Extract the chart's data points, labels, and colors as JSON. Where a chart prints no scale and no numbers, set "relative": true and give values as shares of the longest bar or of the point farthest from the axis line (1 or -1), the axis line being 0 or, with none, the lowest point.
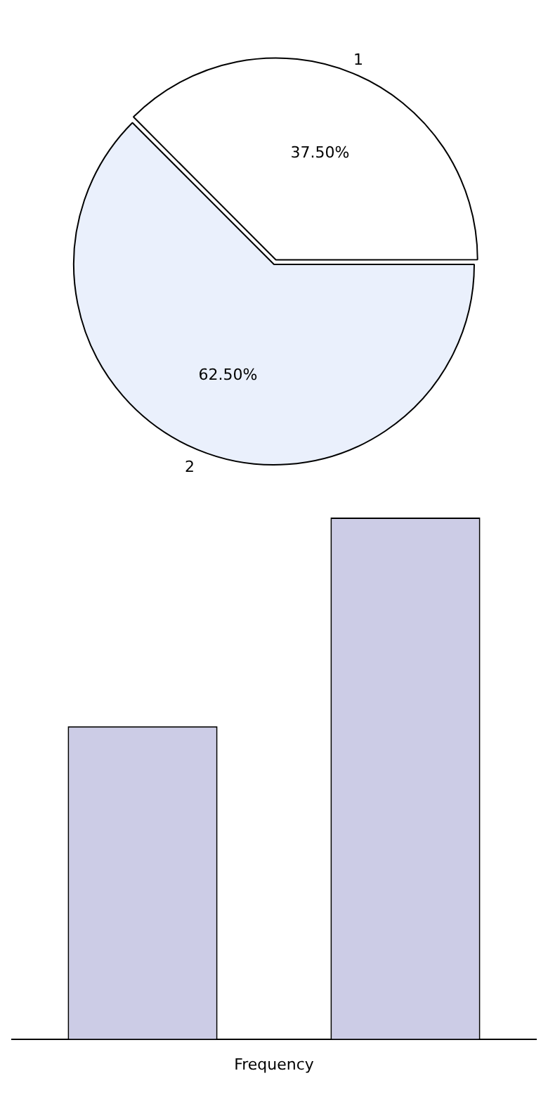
{
  "chart_data": [
    {
      "type": "pie",
      "categories": [
        "1",
        "2"
      ],
      "values": [
        37.5,
        62.5
      ],
      "colors": [
        "#ffffff",
        "#eaf0fc"
      ],
      "value_labels": [
        "37.50%",
        "62.50%"
      ]
    },
    {
      "type": "bar",
      "categories": [
        null,
        null
      ],
      "values": [
        0.6,
        1
      ],
      "color": "#cccce6",
      "relative": true,
      "xlabel": "Frequency"
    }
  ]
}
